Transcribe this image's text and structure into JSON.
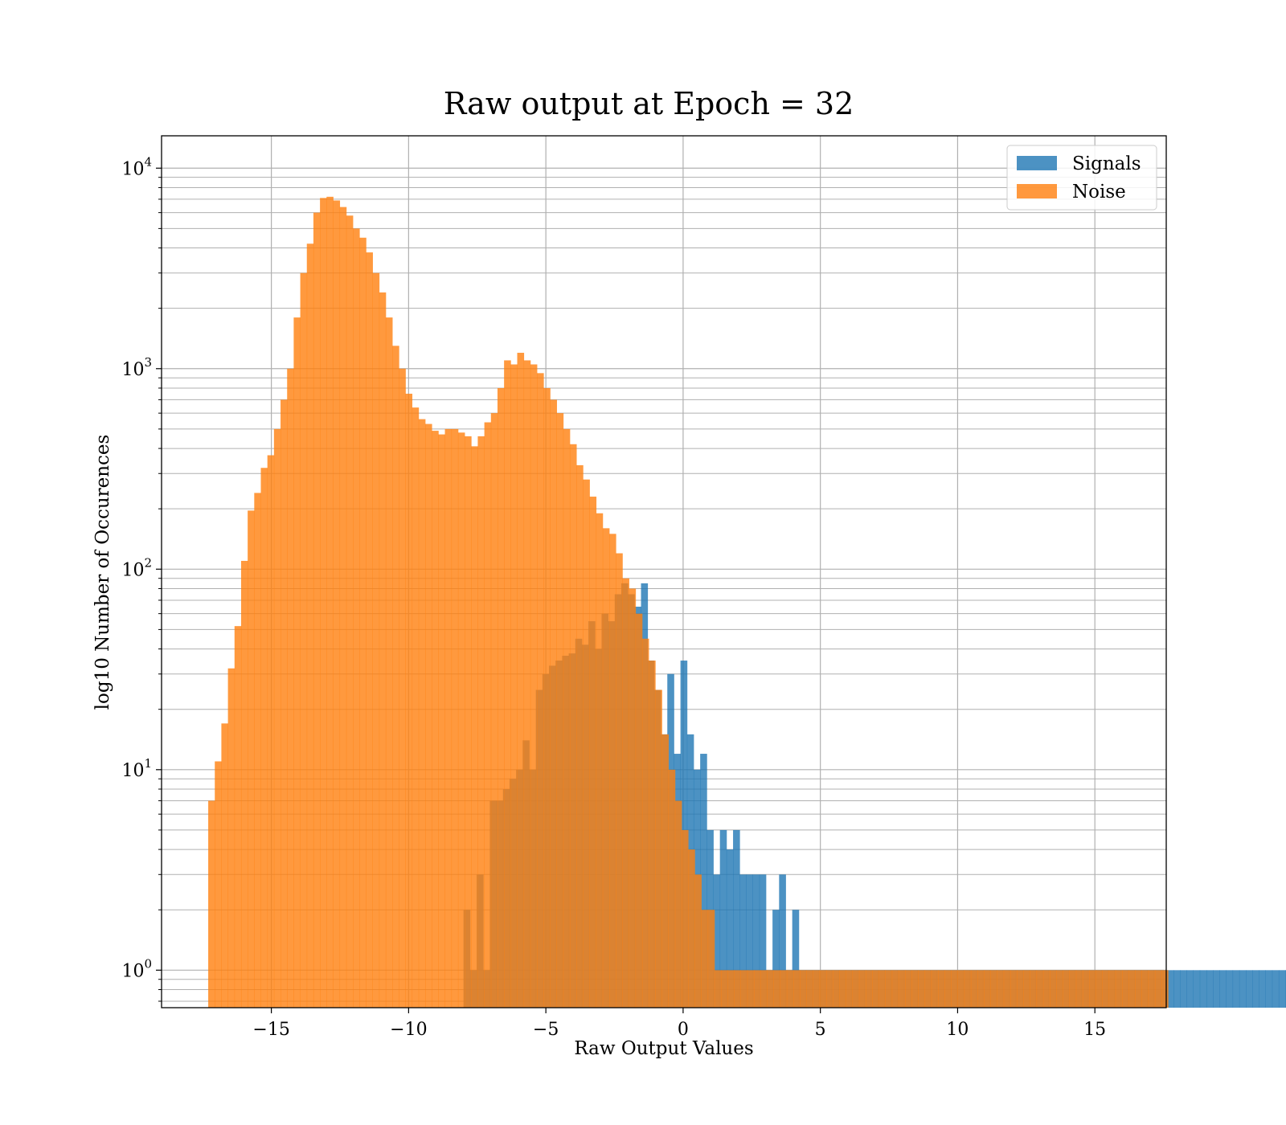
{
  "chart_data": {
    "type": "bar",
    "title": "Raw output at Epoch = 32",
    "xlabel": "Raw Output Values",
    "ylabel": "log10 Number of Occurences",
    "xlim": [
      -19,
      17.6
    ],
    "ylim": [
      0.65,
      14500
    ],
    "yscale": "log",
    "grid": true,
    "legend_position": "top-right",
    "x_ticks": [
      {
        "value": -15,
        "label": "−15"
      },
      {
        "value": -10,
        "label": "−10"
      },
      {
        "value": -5,
        "label": "−5"
      },
      {
        "value": 0,
        "label": "0"
      },
      {
        "value": 5,
        "label": "5"
      },
      {
        "value": 10,
        "label": "10"
      },
      {
        "value": 15,
        "label": "15"
      }
    ],
    "y_ticks": [
      {
        "value": 1,
        "base": "10",
        "exp": "0"
      },
      {
        "value": 10,
        "base": "10",
        "exp": "1"
      },
      {
        "value": 100,
        "base": "10",
        "exp": "2"
      },
      {
        "value": 1000,
        "base": "10",
        "exp": "3"
      },
      {
        "value": 10000,
        "base": "10",
        "exp": "4"
      }
    ],
    "series": [
      {
        "name": "Signals",
        "color": "#1f77b4",
        "alpha": 0.8,
        "bin_start": -8.0,
        "bin_width": 0.2395,
        "counts": [
          2,
          1,
          3,
          1,
          7,
          7,
          8,
          9,
          10,
          14,
          10,
          25,
          30,
          33,
          35,
          37,
          38,
          45,
          42,
          55,
          40,
          60,
          55,
          75,
          85,
          75,
          65,
          85,
          35,
          25,
          15,
          30,
          12,
          35,
          15,
          10,
          12,
          5,
          3,
          5,
          4,
          5,
          3,
          3,
          3,
          3,
          1,
          2,
          3,
          1,
          2,
          1,
          1,
          1,
          1,
          1,
          1,
          1,
          1,
          1,
          1,
          1,
          1,
          1,
          1,
          1,
          1,
          1,
          1,
          1,
          1,
          1,
          1,
          1,
          1,
          1,
          1,
          1,
          1,
          1,
          1,
          1,
          1,
          1,
          1,
          1,
          1,
          1,
          1,
          1,
          1,
          1,
          1,
          1,
          1,
          1,
          1,
          1,
          1,
          1,
          1,
          1,
          1,
          1,
          1,
          1,
          1,
          1,
          1,
          1,
          1,
          1,
          1,
          1,
          1,
          1,
          1,
          1,
          1,
          1,
          1,
          1,
          1,
          1,
          1,
          1,
          1,
          1,
          1,
          1,
          1,
          1,
          1,
          1,
          1,
          1,
          1,
          1,
          1,
          1
        ]
      },
      {
        "name": "Noise",
        "color": "#ff7f0e",
        "alpha": 0.8,
        "bin_start": -17.3,
        "bin_width": 0.2395,
        "counts": [
          7,
          11,
          17,
          32,
          52,
          110,
          196,
          240,
          320,
          370,
          500,
          700,
          1000,
          1800,
          3000,
          4200,
          6000,
          7100,
          7200,
          6900,
          6400,
          5800,
          5000,
          4500,
          3800,
          3000,
          2400,
          1800,
          1300,
          1000,
          750,
          640,
          560,
          530,
          490,
          470,
          500,
          500,
          480,
          460,
          410,
          460,
          540,
          600,
          800,
          1100,
          1050,
          1200,
          1100,
          1050,
          950,
          800,
          700,
          600,
          500,
          420,
          330,
          280,
          230,
          190,
          160,
          150,
          120,
          90,
          80,
          60,
          45,
          35,
          25,
          15,
          10,
          7,
          5,
          4,
          3,
          2,
          2,
          1,
          1,
          1,
          1,
          1,
          1,
          1,
          1,
          1,
          1,
          1,
          1,
          1,
          1,
          1,
          1,
          1,
          1,
          1,
          1,
          1,
          1,
          1,
          1,
          1,
          1,
          1,
          1,
          1,
          1,
          1,
          1,
          1,
          1,
          1,
          1,
          1,
          1,
          1,
          1,
          1,
          1,
          1,
          1,
          1,
          1,
          1,
          1,
          1,
          1,
          1,
          1,
          1,
          1,
          1,
          1,
          1,
          1,
          1,
          1,
          1,
          1,
          1,
          1,
          1,
          1,
          1,
          1,
          1
        ]
      }
    ]
  }
}
